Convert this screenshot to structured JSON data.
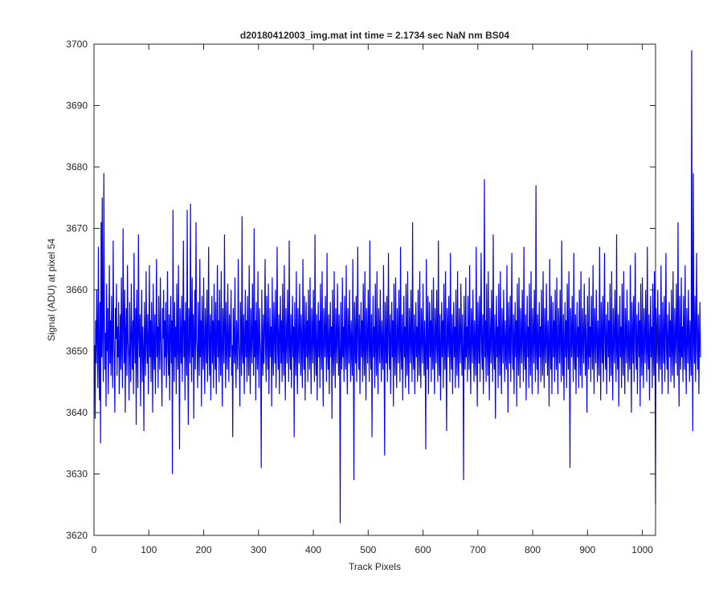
{
  "figure": {
    "background": "#ffffff",
    "axes_color": "#262626",
    "line_color": "#0000ff"
  },
  "chart_data": {
    "type": "line",
    "title": "d20180412003_img.mat int time = 2.1734 sec  NaN nm BS04",
    "xlabel": "Track Pixels",
    "ylabel": "Signal (ADU) at pixel 54",
    "xlim": [
      0,
      1024
    ],
    "ylim": [
      3620,
      3700
    ],
    "xticks": [
      0,
      100,
      200,
      300,
      400,
      500,
      600,
      700,
      800,
      900,
      1000
    ],
    "yticks": [
      3620,
      3630,
      3640,
      3650,
      3660,
      3670,
      3680,
      3690,
      3700
    ],
    "grid": false,
    "legend": "none",
    "series": [
      {
        "color": "#0000ff",
        "x_start": 1,
        "x_step": 1,
        "values": [
          3651,
          3639,
          3655,
          3648,
          3660,
          3652,
          3644,
          3667,
          3650,
          3642,
          3658,
          3635,
          3671,
          3649,
          3675,
          3652,
          3645,
          3679,
          3656,
          3647,
          3653,
          3641,
          3661,
          3650,
          3657,
          3643,
          3652,
          3664,
          3648,
          3655,
          3646,
          3659,
          3651,
          3644,
          3668,
          3653,
          3649,
          3640,
          3657,
          3652,
          3661,
          3646,
          3654,
          3649,
          3658,
          3643,
          3650,
          3656,
          3647,
          3662,
          3651,
          3644,
          3670,
          3655,
          3648,
          3660,
          3640,
          3653,
          3657,
          3646,
          3664,
          3652,
          3649,
          3642,
          3658,
          3651,
          3645,
          3661,
          3653,
          3647,
          3655,
          3643,
          3666,
          3652,
          3648,
          3657,
          3638,
          3660,
          3650,
          3644,
          3669,
          3653,
          3649,
          3656,
          3641,
          3652,
          3660,
          3645,
          3654,
          3650,
          3637,
          3658,
          3651,
          3646,
          3663,
          3652,
          3648,
          3656,
          3643,
          3651,
          3664,
          3649,
          3655,
          3645,
          3658,
          3652,
          3640,
          3661,
          3650,
          3647,
          3656,
          3643,
          3652,
          3665,
          3649,
          3654,
          3644,
          3659,
          3651,
          3647,
          3662,
          3653,
          3648,
          3641,
          3657,
          3652,
          3660,
          3646,
          3655,
          3649,
          3658,
          3644,
          3651,
          3663,
          3650,
          3646,
          3656,
          3642,
          3653,
          3659,
          3648,
          3655,
          3630,
          3673,
          3652,
          3645,
          3658,
          3649,
          3654,
          3643,
          3661,
          3651,
          3647,
          3664,
          3650,
          3634,
          3657,
          3652,
          3648,
          3659,
          3645,
          3653,
          3668,
          3649,
          3655,
          3642,
          3658,
          3651,
          3646,
          3673,
          3650,
          3638,
          3657,
          3653,
          3648,
          3674,
          3652,
          3645,
          3662,
          3649,
          3656,
          3639,
          3653,
          3660,
          3647,
          3671,
          3652,
          3650,
          3644,
          3658,
          3651,
          3646,
          3665,
          3649,
          3655,
          3641,
          3659,
          3652,
          3647,
          3662,
          3650,
          3643,
          3657,
          3653,
          3648,
          3660,
          3645,
          3652,
          3667,
          3650,
          3646,
          3656,
          3642,
          3653,
          3659,
          3648,
          3655,
          3644,
          3661,
          3651,
          3647,
          3658,
          3643,
          3652,
          3664,
          3649,
          3655,
          3645,
          3660,
          3651,
          3646,
          3663,
          3650,
          3641,
          3657,
          3652,
          3648,
          3669,
          3653,
          3644,
          3658,
          3650,
          3647,
          3661,
          3652,
          3645,
          3656,
          3649,
          3653,
          3660,
          3646,
          3651,
          3636,
          3657,
          3652,
          3648,
          3662,
          3650,
          3644,
          3655,
          3651,
          3647,
          3665,
          3652,
          3649,
          3641,
          3658,
          3653,
          3646,
          3672,
          3650,
          3648,
          3656,
          3643,
          3652,
          3660,
          3649,
          3655,
          3645,
          3659,
          3651,
          3646,
          3664,
          3650,
          3643,
          3657,
          3652,
          3648,
          3661,
          3653,
          3646,
          3670,
          3649,
          3655,
          3642,
          3658,
          3651,
          3647,
          3663,
          3650,
          3644,
          3657,
          3652,
          3649,
          3631,
          3660,
          3651,
          3646,
          3656,
          3648,
          3653,
          3665,
          3650,
          3645,
          3659,
          3652,
          3647,
          3661,
          3643,
          3651,
          3657,
          3649,
          3654,
          3641,
          3662,
          3650,
          3646,
          3658,
          3653,
          3648,
          3660,
          3644,
          3652,
          3667,
          3650,
          3647,
          3656,
          3643,
          3653,
          3659,
          3648,
          3655,
          3645,
          3661,
          3651,
          3646,
          3664,
          3650,
          3642,
          3657,
          3652,
          3648,
          3660,
          3653,
          3645,
          3668,
          3650,
          3647,
          3656,
          3644,
          3652,
          3659,
          3649,
          3654,
          3636,
          3658,
          3651,
          3646,
          3663,
          3650,
          3643,
          3657,
          3652,
          3648,
          3661,
          3653,
          3646,
          3656,
          3650,
          3644,
          3665,
          3651,
          3647,
          3659,
          3642,
          3652,
          3658,
          3649,
          3655,
          3645,
          3660,
          3651,
          3647,
          3662,
          3650,
          3643,
          3657,
          3653,
          3648,
          3660,
          3652,
          3645,
          3669,
          3650,
          3646,
          3656,
          3642,
          3651,
          3658,
          3649,
          3655,
          3644,
          3661,
          3652,
          3647,
          3663,
          3650,
          3641,
          3657,
          3653,
          3649,
          3659,
          3652,
          3645,
          3666,
          3650,
          3647,
          3656,
          3643,
          3652,
          3658,
          3649,
          3654,
          3639,
          3660,
          3651,
          3646,
          3663,
          3650,
          3644,
          3657,
          3652,
          3648,
          3661,
          3653,
          3646,
          3656,
          3650,
          3622,
          3658,
          3651,
          3647,
          3662,
          3649,
          3654,
          3645,
          3659,
          3652,
          3647,
          3664,
          3650,
          3643,
          3657,
          3653,
          3648,
          3660,
          3652,
          3645,
          3655,
          3650,
          3646,
          3665,
          3651,
          3629,
          3658,
          3652,
          3648,
          3659,
          3645,
          3653,
          3667,
          3650,
          3647,
          3656,
          3643,
          3652,
          3658,
          3649,
          3655,
          3645,
          3661,
          3651,
          3646,
          3663,
          3650,
          3642,
          3657,
          3652,
          3648,
          3660,
          3653,
          3645,
          3668,
          3650,
          3647,
          3656,
          3636,
          3652,
          3659,
          3649,
          3654,
          3644,
          3661,
          3651,
          3646,
          3663,
          3650,
          3643,
          3657,
          3653,
          3648,
          3660,
          3652,
          3645,
          3655,
          3650,
          3647,
          3664,
          3651,
          3633,
          3658,
          3652,
          3648,
          3659,
          3645,
          3653,
          3666,
          3650,
          3647,
          3656,
          3643,
          3652,
          3658,
          3649,
          3655,
          3641,
          3661,
          3651,
          3646,
          3662,
          3650,
          3644,
          3657,
          3652,
          3648,
          3660,
          3653,
          3645,
          3667,
          3650,
          3647,
          3656,
          3642,
          3652,
          3659,
          3649,
          3654,
          3644,
          3661,
          3651,
          3646,
          3663,
          3650,
          3643,
          3657,
          3653,
          3648,
          3660,
          3652,
          3645,
          3671,
          3650,
          3647,
          3656,
          3643,
          3652,
          3658,
          3649,
          3654,
          3645,
          3660,
          3651,
          3646,
          3663,
          3650,
          3644,
          3657,
          3653,
          3648,
          3661,
          3652,
          3646,
          3655,
          3650,
          3634,
          3665,
          3651,
          3647,
          3659,
          3643,
          3652,
          3658,
          3649,
          3655,
          3645,
          3660,
          3651,
          3647,
          3662,
          3650,
          3643,
          3657,
          3653,
          3648,
          3660,
          3652,
          3645,
          3668,
          3650,
          3646,
          3656,
          3642,
          3651,
          3658,
          3649,
          3655,
          3644,
          3661,
          3652,
          3647,
          3663,
          3650,
          3637,
          3657,
          3653,
          3649,
          3659,
          3652,
          3645,
          3666,
          3650,
          3647,
          3656,
          3643,
          3652,
          3658,
          3649,
          3654,
          3644,
          3660,
          3651,
          3646,
          3663,
          3650,
          3644,
          3657,
          3652,
          3648,
          3661,
          3653,
          3646,
          3656,
          3650,
          3629,
          3659,
          3651,
          3647,
          3662,
          3649,
          3654,
          3645,
          3659,
          3652,
          3647,
          3664,
          3650,
          3643,
          3657,
          3653,
          3648,
          3660,
          3652,
          3645,
          3655,
          3650,
          3646,
          3667,
          3651,
          3641,
          3658,
          3652,
          3648,
          3659,
          3645,
          3653,
          3666,
          3650,
          3647,
          3656,
          3643,
          3652,
          3678,
          3649,
          3655,
          3645,
          3661,
          3651,
          3646,
          3663,
          3650,
          3642,
          3657,
          3652,
          3648,
          3660,
          3653,
          3645,
          3669,
          3650,
          3647,
          3656,
          3639,
          3652,
          3659,
          3649,
          3654,
          3644,
          3661,
          3651,
          3646,
          3663,
          3650,
          3643,
          3657,
          3653,
          3648,
          3660,
          3652,
          3645,
          3655,
          3650,
          3647,
          3664,
          3651,
          3640,
          3658,
          3652,
          3648,
          3659,
          3645,
          3653,
          3666,
          3650,
          3647,
          3656,
          3643,
          3652,
          3658,
          3649,
          3655,
          3641,
          3661,
          3651,
          3646,
          3662,
          3650,
          3644,
          3657,
          3652,
          3648,
          3660,
          3653,
          3645,
          3667,
          3650,
          3647,
          3656,
          3642,
          3652,
          3659,
          3649,
          3654,
          3644,
          3661,
          3651,
          3646,
          3663,
          3650,
          3643,
          3657,
          3653,
          3648,
          3660,
          3652,
          3645,
          3677,
          3650,
          3647,
          3656,
          3643,
          3652,
          3658,
          3649,
          3654,
          3645,
          3660,
          3651,
          3646,
          3663,
          3650,
          3644,
          3657,
          3652,
          3648,
          3661,
          3652,
          3646,
          3655,
          3650,
          3641,
          3665,
          3651,
          3647,
          3659,
          3643,
          3652,
          3658,
          3649,
          3655,
          3645,
          3660,
          3651,
          3647,
          3662,
          3650,
          3643,
          3657,
          3653,
          3648,
          3660,
          3652,
          3645,
          3668,
          3650,
          3646,
          3656,
          3642,
          3651,
          3658,
          3649,
          3655,
          3644,
          3661,
          3652,
          3647,
          3663,
          3650,
          3631,
          3657,
          3653,
          3649,
          3659,
          3652,
          3645,
          3666,
          3650,
          3647,
          3656,
          3643,
          3652,
          3658,
          3649,
          3654,
          3644,
          3660,
          3651,
          3646,
          3663,
          3650,
          3644,
          3657,
          3652,
          3648,
          3661,
          3653,
          3646,
          3656,
          3650,
          3640,
          3659,
          3651,
          3647,
          3662,
          3649,
          3654,
          3645,
          3659,
          3652,
          3647,
          3664,
          3650,
          3643,
          3657,
          3653,
          3648,
          3660,
          3652,
          3645,
          3655,
          3650,
          3646,
          3667,
          3651,
          3642,
          3658,
          3652,
          3648,
          3659,
          3645,
          3653,
          3666,
          3650,
          3647,
          3656,
          3643,
          3652,
          3658,
          3649,
          3655,
          3645,
          3661,
          3651,
          3646,
          3663,
          3650,
          3642,
          3657,
          3652,
          3648,
          3660,
          3653,
          3645,
          3669,
          3650,
          3647,
          3656,
          3641,
          3652,
          3659,
          3649,
          3654,
          3644,
          3661,
          3651,
          3646,
          3663,
          3650,
          3643,
          3657,
          3653,
          3648,
          3660,
          3652,
          3645,
          3655,
          3650,
          3647,
          3664,
          3651,
          3640,
          3658,
          3652,
          3648,
          3659,
          3645,
          3653,
          3666,
          3650,
          3647,
          3656,
          3643,
          3652,
          3658,
          3649,
          3655,
          3641,
          3661,
          3651,
          3646,
          3662,
          3650,
          3644,
          3657,
          3652,
          3648,
          3660,
          3653,
          3645,
          3667,
          3650,
          3647,
          3656,
          3642,
          3652,
          3659,
          3649,
          3654,
          3644,
          3661,
          3651,
          3646,
          3663,
          3650,
          3625,
          3657,
          3653,
          3648,
          3660,
          3652,
          3645,
          3656,
          3650,
          3647,
          3664,
          3651,
          3643,
          3658,
          3652,
          3648,
          3659,
          3645,
          3653,
          3666,
          3650,
          3647,
          3656,
          3643,
          3652,
          3658,
          3649,
          3655,
          3645,
          3660,
          3651,
          3646,
          3663,
          3650,
          3644,
          3657,
          3652,
          3648,
          3661,
          3653,
          3646,
          3671,
          3650,
          3641,
          3659,
          3651,
          3647,
          3662,
          3649,
          3654,
          3645,
          3659,
          3652,
          3647,
          3664,
          3650,
          3643,
          3657,
          3653,
          3648,
          3660,
          3652,
          3645,
          3655,
          3650,
          3646,
          3699,
          3651,
          3637,
          3679,
          3652,
          3648,
          3659,
          3645,
          3653,
          3666,
          3650,
          3647,
          3656,
          3643,
          3652,
          3658,
          3649
        ]
      }
    ]
  }
}
